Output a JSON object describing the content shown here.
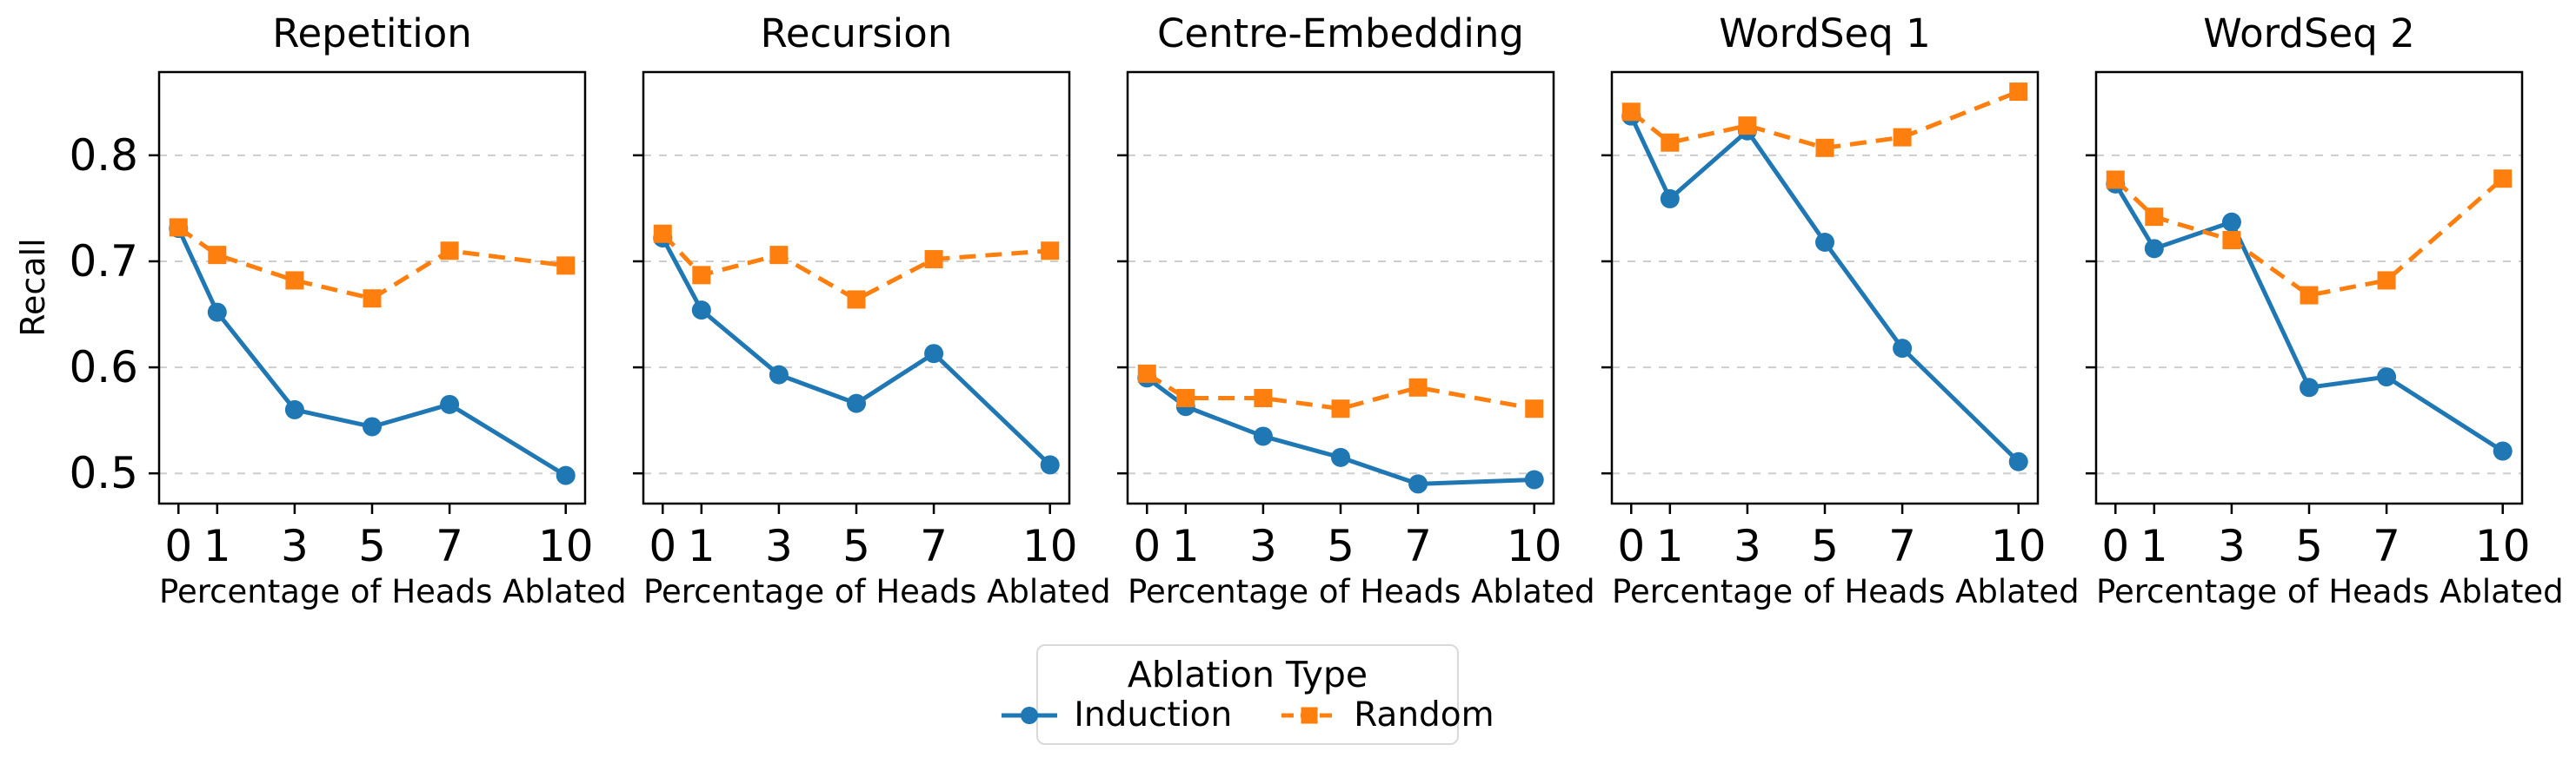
{
  "figure": {
    "ylabel": "Recall",
    "xlabel": "Percentage of Heads Ablated",
    "x_ticks": [
      0,
      1,
      3,
      5,
      7,
      10
    ],
    "y_ticks": [
      0.5,
      0.6,
      0.7,
      0.8
    ],
    "xlim": [
      -0.5,
      10.5
    ],
    "ylim": [
      0.4715,
      0.8785
    ],
    "grid": "horizontal-dashed",
    "grid_color": "#cdcdcd",
    "spine_color": "#000000",
    "background_color": "#ffffff"
  },
  "legend": {
    "title": "Ablation Type",
    "position": "lower center",
    "entries": [
      {
        "label": "Induction",
        "color": "#1f77b4",
        "marker": "circle",
        "line": "solid"
      },
      {
        "label": "Random",
        "color": "#ff7f0e",
        "marker": "square",
        "line": "dashed"
      }
    ]
  },
  "chart_data": [
    {
      "type": "line",
      "title": "Repetition",
      "xlabel": "Percentage of Heads Ablated",
      "ylabel": "Recall",
      "x": [
        0,
        1,
        3,
        5,
        7,
        10
      ],
      "ylim": [
        0.4715,
        0.8785
      ],
      "series": [
        {
          "name": "Induction",
          "values": [
            0.731,
            0.652,
            0.56,
            0.544,
            0.565,
            0.498
          ]
        },
        {
          "name": "Random",
          "values": [
            0.732,
            0.706,
            0.682,
            0.665,
            0.71,
            0.696
          ]
        }
      ]
    },
    {
      "type": "line",
      "title": "Recursion",
      "xlabel": "Percentage of Heads Ablated",
      "ylabel": "Recall",
      "x": [
        0,
        1,
        3,
        5,
        7,
        10
      ],
      "ylim": [
        0.4715,
        0.8785
      ],
      "series": [
        {
          "name": "Induction",
          "values": [
            0.722,
            0.654,
            0.593,
            0.566,
            0.613,
            0.508
          ]
        },
        {
          "name": "Random",
          "values": [
            0.726,
            0.687,
            0.706,
            0.664,
            0.702,
            0.71
          ]
        }
      ]
    },
    {
      "type": "line",
      "title": "Centre-Embedding",
      "xlabel": "Percentage of Heads Ablated",
      "ylabel": "Recall",
      "x": [
        0,
        1,
        3,
        5,
        7,
        10
      ],
      "ylim": [
        0.4715,
        0.8785
      ],
      "series": [
        {
          "name": "Induction",
          "values": [
            0.59,
            0.563,
            0.535,
            0.515,
            0.49,
            0.494
          ]
        },
        {
          "name": "Random",
          "values": [
            0.594,
            0.571,
            0.571,
            0.561,
            0.581,
            0.561
          ]
        }
      ]
    },
    {
      "type": "line",
      "title": "WordSeq 1",
      "xlabel": "Percentage of Heads Ablated",
      "ylabel": "Recall",
      "x": [
        0,
        1,
        3,
        5,
        7,
        10
      ],
      "ylim": [
        0.4715,
        0.8785
      ],
      "series": [
        {
          "name": "Induction",
          "values": [
            0.837,
            0.759,
            0.823,
            0.718,
            0.618,
            0.511
          ]
        },
        {
          "name": "Random",
          "values": [
            0.841,
            0.812,
            0.828,
            0.807,
            0.817,
            0.86
          ]
        }
      ]
    },
    {
      "type": "line",
      "title": "WordSeq 2",
      "xlabel": "Percentage of Heads Ablated",
      "ylabel": "Recall",
      "x": [
        0,
        1,
        3,
        5,
        7,
        10
      ],
      "ylim": [
        0.4715,
        0.8785
      ],
      "series": [
        {
          "name": "Induction",
          "values": [
            0.773,
            0.712,
            0.737,
            0.581,
            0.591,
            0.521
          ]
        },
        {
          "name": "Random",
          "values": [
            0.777,
            0.742,
            0.72,
            0.668,
            0.682,
            0.778
          ]
        }
      ]
    }
  ]
}
